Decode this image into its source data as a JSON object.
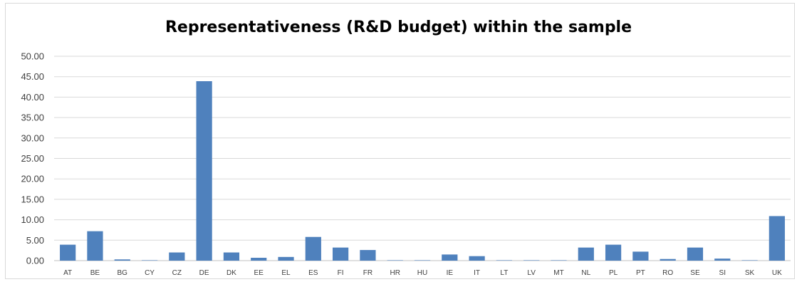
{
  "chart_data": {
    "type": "bar",
    "title": "Representativeness (R&D budget) within the sample",
    "xlabel": "",
    "ylabel": "",
    "ylim": [
      0,
      50
    ],
    "yticks": [
      "0.00",
      "5.00",
      "10.00",
      "15.00",
      "20.00",
      "25.00",
      "30.00",
      "35.00",
      "40.00",
      "45.00",
      "50.00"
    ],
    "grid": true,
    "bar_color": "#4f81bd",
    "categories": [
      "AT",
      "BE",
      "BG",
      "CY",
      "CZ",
      "DE",
      "DK",
      "EE",
      "EL",
      "ES",
      "FI",
      "FR",
      "HR",
      "HU",
      "IE",
      "IT",
      "LT",
      "LV",
      "MT",
      "NL",
      "PL",
      "PT",
      "RO",
      "SE",
      "SI",
      "SK",
      "UK"
    ],
    "values": [
      3.9,
      7.2,
      0.3,
      0.1,
      2.0,
      43.9,
      2.0,
      0.7,
      0.9,
      5.8,
      3.2,
      2.6,
      0.1,
      0.1,
      1.5,
      1.1,
      0.1,
      0.1,
      0.1,
      3.2,
      3.9,
      2.2,
      0.4,
      3.2,
      0.5,
      0.1,
      10.9
    ]
  }
}
